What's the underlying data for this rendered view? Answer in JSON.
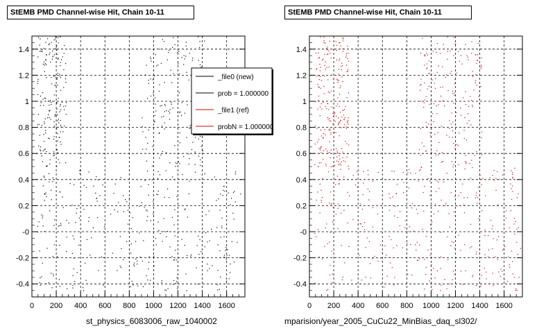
{
  "colors": {
    "new": "#000000",
    "ref": "#d40000",
    "grid": "#000000"
  },
  "panels": [
    {
      "title": "StEMB PMD Channel-wise Hit, Chain 10-11",
      "footer": "st_physics_6083006_raw_1040002",
      "legend": [
        {
          "label": "_file0 (new)",
          "color": "#000000"
        },
        {
          "label": "prob = 1.000000",
          "color": "#000000"
        },
        {
          "label": "_file1 (ref)",
          "color": "#d40000"
        },
        {
          "label": "probN = 1.000000",
          "color": "#d40000"
        }
      ]
    },
    {
      "title": "StEMB PMD Channel-wise Hit, Chain 10-11",
      "footer": "mparision/year_2005_CuCu22_MinBias_daq_sl302/"
    }
  ],
  "chart_data": [
    {
      "type": "scatter",
      "title": "StEMB PMD Channel-wise Hit, Chain 10-11",
      "xlabel": "",
      "ylabel": "",
      "xlim": [
        0,
        1750
      ],
      "ylim": [
        -0.5,
        1.5
      ],
      "xticks": [
        "0",
        "200",
        "400",
        "600",
        "800",
        "1000",
        "1200",
        "1400",
        "1600"
      ],
      "yticks": [
        "-0.4",
        "-0.2",
        "-0",
        "0.2",
        "0.4",
        "0.6",
        "0.8",
        "1",
        "1.2",
        "1.4"
      ],
      "grid": true,
      "legend_position": "top-right",
      "series_color": "#000000",
      "regions": [
        {
          "x": [
            40,
            280
          ],
          "y": [
            0.5,
            1.5
          ],
          "density": 180
        },
        {
          "x": [
            900,
            1420
          ],
          "y": [
            0.5,
            1.5
          ],
          "density": 150
        },
        {
          "x": [
            40,
            1720
          ],
          "y": [
            -0.45,
            0.5
          ],
          "density": 300
        }
      ]
    },
    {
      "type": "scatter",
      "title": "StEMB PMD Channel-wise Hit, Chain 10-11",
      "xlabel": "",
      "ylabel": "",
      "xlim": [
        0,
        1750
      ],
      "ylim": [
        -0.5,
        1.5
      ],
      "xticks": [
        "0",
        "200",
        "400",
        "600",
        "800",
        "1000",
        "1200",
        "1400",
        "1600"
      ],
      "yticks": [
        "-0.4",
        "-0.2",
        "-0",
        "0.2",
        "0.4",
        "0.6",
        "0.8",
        "1",
        "1.2",
        "1.4"
      ],
      "grid": true,
      "series_color": "#d40000",
      "regions": [
        {
          "x": [
            40,
            320
          ],
          "y": [
            0.5,
            1.5
          ],
          "density": 220
        },
        {
          "x": [
            900,
            1420
          ],
          "y": [
            0.5,
            1.5
          ],
          "density": 180
        },
        {
          "x": [
            40,
            1740
          ],
          "y": [
            -0.45,
            0.5
          ],
          "density": 340
        }
      ]
    }
  ]
}
